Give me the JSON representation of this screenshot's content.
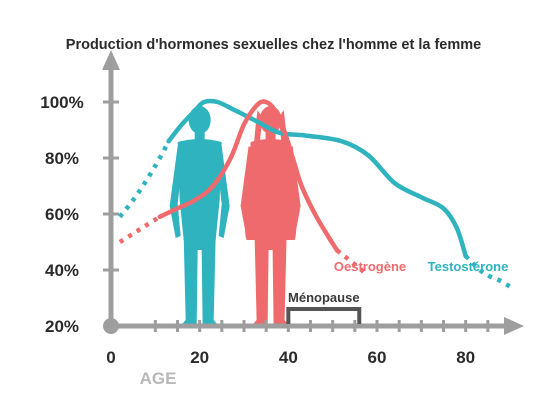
{
  "chart_data": {
    "type": "line",
    "title": "Production d'hormones sexuelles chez l'homme et la femme",
    "xlabel": "AGE",
    "ylabel": "",
    "xlim": [
      0,
      90
    ],
    "ylim": [
      20,
      110
    ],
    "x_ticks": [
      0,
      20,
      40,
      60,
      80
    ],
    "y_ticks": [
      "20%",
      "40%",
      "60%",
      "80%",
      "100%"
    ],
    "y_tick_values": [
      20,
      40,
      60,
      80,
      100
    ],
    "series": [
      {
        "name": "Testostérone",
        "color": "#2fb3bf",
        "dotted_start": [
          [
            2,
            59
          ],
          [
            5,
            65
          ],
          [
            8,
            72
          ],
          [
            11,
            80
          ],
          [
            13,
            86
          ]
        ],
        "points": [
          [
            13,
            86
          ],
          [
            16,
            92
          ],
          [
            19,
            97
          ],
          [
            21,
            100
          ],
          [
            24,
            100
          ],
          [
            28,
            97
          ],
          [
            33,
            93
          ],
          [
            38,
            89
          ],
          [
            44,
            88
          ],
          [
            52,
            86
          ],
          [
            58,
            81
          ],
          [
            64,
            71
          ],
          [
            70,
            66
          ],
          [
            75,
            62
          ],
          [
            78,
            55
          ],
          [
            80,
            45
          ]
        ],
        "dotted_end": [
          [
            80,
            45
          ],
          [
            84,
            39
          ],
          [
            88,
            36
          ],
          [
            90,
            34
          ]
        ]
      },
      {
        "name": "Oestrogène",
        "color": "#ef6a6c",
        "dotted_start": [
          [
            2,
            50
          ],
          [
            5,
            53
          ],
          [
            8,
            56
          ],
          [
            11,
            59
          ]
        ],
        "points": [
          [
            11,
            59
          ],
          [
            15,
            62
          ],
          [
            19,
            65
          ],
          [
            23,
            70
          ],
          [
            27,
            80
          ],
          [
            30,
            92
          ],
          [
            33,
            99
          ],
          [
            35,
            100
          ],
          [
            37,
            97
          ],
          [
            39,
            90
          ],
          [
            41,
            80
          ],
          [
            43,
            70
          ],
          [
            46,
            60
          ],
          [
            49,
            52
          ],
          [
            51,
            47
          ]
        ],
        "dotted_end": [
          [
            51,
            47
          ],
          [
            55,
            42
          ],
          [
            58,
            38
          ]
        ]
      }
    ],
    "annotations": [
      {
        "label": "Ménopause",
        "x_start": 40,
        "x_end": 56
      }
    ],
    "grid": false,
    "legend": "inline labels near line ends"
  }
}
